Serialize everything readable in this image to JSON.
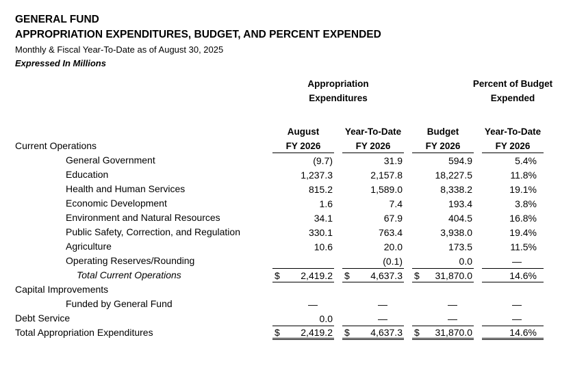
{
  "page": {
    "title_line1": "GENERAL FUND",
    "title_line2": "APPROPRIATION EXPENDITURES, BUDGET, AND PERCENT EXPENDED",
    "subtitle": "Monthly & Fiscal Year-To-Date as of August 30, 2025",
    "units_note": "Expressed In Millions",
    "text_color": "#000000",
    "background_color": "#ffffff"
  },
  "table": {
    "group_headers": {
      "expenditures": {
        "line1": "Appropriation",
        "line2": "Expenditures"
      },
      "percent": {
        "line1": "Percent of Budget",
        "line2": "Expended"
      }
    },
    "column_headers": [
      {
        "title": "August",
        "fiscal_year": "FY 2026"
      },
      {
        "title": "Year-To-Date",
        "fiscal_year": "FY 2026"
      },
      {
        "title": "Budget",
        "fiscal_year": "FY 2026"
      },
      {
        "title": "Year-To-Date",
        "fiscal_year": "FY 2026"
      }
    ],
    "section_label": "Current Operations",
    "currency_symbol": "$",
    "rows": [
      {
        "label": "General Government",
        "indent": 1,
        "values": [
          "(9.7)",
          "31.9",
          "594.9",
          "5.4%"
        ]
      },
      {
        "label": "Education",
        "indent": 1,
        "values": [
          "1,237.3",
          "2,157.8",
          "18,227.5",
          "11.8%"
        ]
      },
      {
        "label": "Health and Human Services",
        "indent": 1,
        "values": [
          "815.2",
          "1,589.0",
          "8,338.2",
          "19.1%"
        ]
      },
      {
        "label": "Economic Development",
        "indent": 1,
        "values": [
          "1.6",
          "7.4",
          "193.4",
          "3.8%"
        ]
      },
      {
        "label": "Environment and Natural Resources",
        "indent": 1,
        "values": [
          "34.1",
          "67.9",
          "404.5",
          "16.8%"
        ]
      },
      {
        "label": "Public Safety, Correction, and Regulation",
        "indent": 1,
        "values": [
          "330.1",
          "763.4",
          "3,938.0",
          "19.4%"
        ]
      },
      {
        "label": "Agriculture",
        "indent": 1,
        "values": [
          "10.6",
          "20.0",
          "173.5",
          "11.5%"
        ]
      },
      {
        "label": "Operating Reserves/Rounding",
        "indent": 1,
        "values": [
          "",
          "(0.1)",
          "0.0",
          "—"
        ]
      },
      {
        "label": "Total Current Operations",
        "indent": 2,
        "italic": true,
        "show_dollar": true,
        "total_style": "single",
        "values": [
          "2,419.2",
          "4,637.3",
          "31,870.0",
          "14.6%"
        ]
      },
      {
        "label": "Capital Improvements",
        "indent": 0,
        "values": [
          "",
          "",
          "",
          ""
        ]
      },
      {
        "label": "Funded by General Fund",
        "indent": 1,
        "values": [
          "—",
          "—",
          "—",
          "—"
        ]
      },
      {
        "label": "Debt Service",
        "indent": 0,
        "values": [
          "0.0",
          "—",
          "—",
          "—"
        ]
      },
      {
        "label": "Total Appropriation Expenditures",
        "indent": 0,
        "show_dollar": true,
        "total_style": "grand",
        "values": [
          "2,419.2",
          "4,637.3",
          "31,870.0",
          "14.6%"
        ]
      }
    ]
  }
}
